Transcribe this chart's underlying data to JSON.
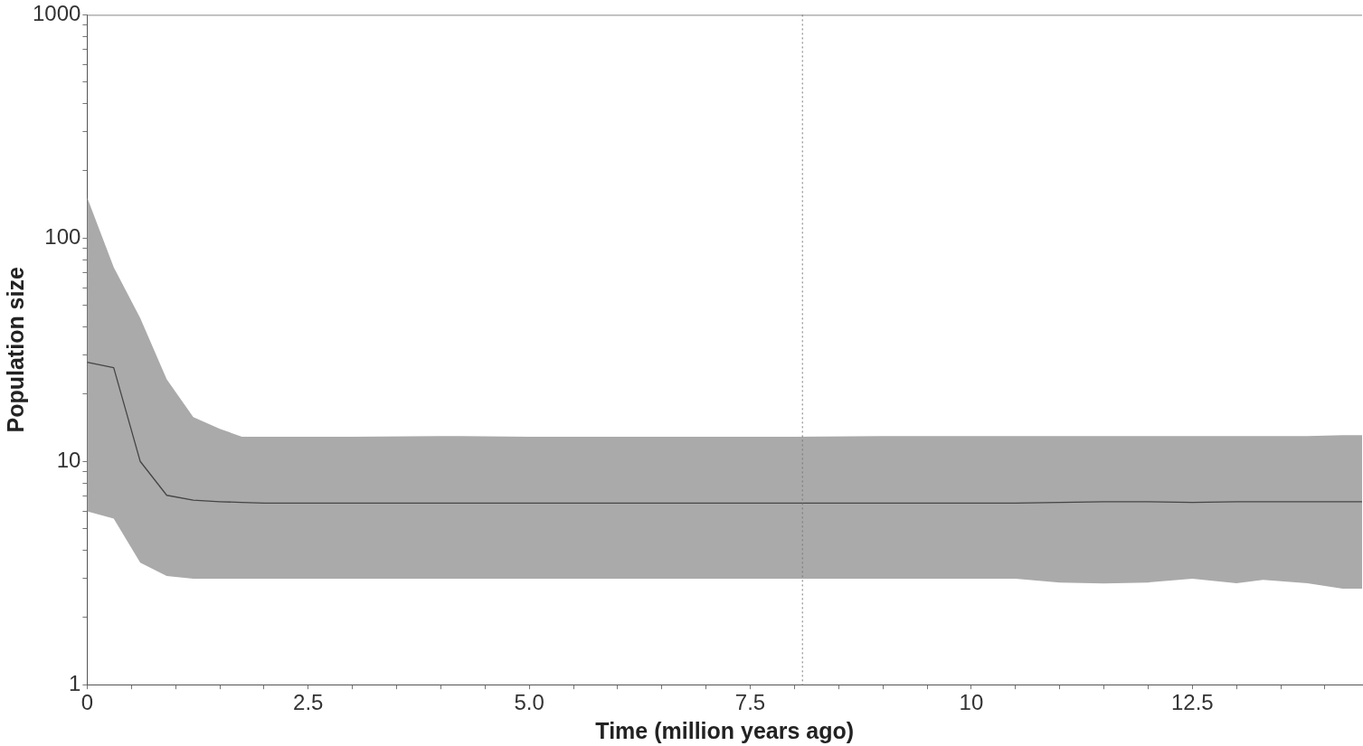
{
  "chart_data": {
    "type": "line",
    "xlabel": "Time (million years ago)",
    "ylabel": "Population size",
    "log": "y",
    "grid": false,
    "legend": false,
    "marker": "none",
    "xlim": [
      0,
      14.42
    ],
    "ylim": [
      1,
      1000
    ],
    "xticks": [
      0,
      {
        "value": 0.5,
        "label": null
      },
      {
        "value": 1,
        "label": null
      },
      {
        "value": 1.5,
        "label": null
      },
      {
        "value": 2,
        "label": null
      },
      2.5,
      {
        "value": 3,
        "label": null
      },
      {
        "value": 3.5,
        "label": null
      },
      {
        "value": 4,
        "label": null
      },
      {
        "value": 4.5,
        "label": null
      },
      {
        "value": 5,
        "label": "5.0"
      },
      {
        "value": 5.5,
        "label": null
      },
      {
        "value": 6,
        "label": null
      },
      {
        "value": 6.5,
        "label": null
      },
      {
        "value": 7,
        "label": null
      },
      7.5,
      {
        "value": 8,
        "label": null
      },
      {
        "value": 8.5,
        "label": null
      },
      {
        "value": 9,
        "label": null
      },
      {
        "value": 9.5,
        "label": null
      },
      10,
      {
        "value": 10.5,
        "label": null
      },
      {
        "value": 11,
        "label": null
      },
      {
        "value": 11.5,
        "label": null
      },
      {
        "value": 12,
        "label": null
      },
      12.5,
      {
        "value": 13,
        "label": null
      },
      {
        "value": 13.5,
        "label": null
      },
      {
        "value": 14,
        "label": null
      }
    ],
    "yticks": [
      1,
      {
        "value": 2,
        "label": null
      },
      {
        "value": 3,
        "label": null
      },
      {
        "value": 4,
        "label": null
      },
      {
        "value": 5,
        "label": null
      },
      {
        "value": 6,
        "label": null
      },
      {
        "value": 7,
        "label": null
      },
      {
        "value": 8,
        "label": null
      },
      {
        "value": 9,
        "label": null
      },
      10,
      {
        "value": 20,
        "label": null
      },
      {
        "value": 30,
        "label": null
      },
      {
        "value": 40,
        "label": null
      },
      {
        "value": 50,
        "label": null
      },
      {
        "value": 60,
        "label": null
      },
      {
        "value": 70,
        "label": null
      },
      {
        "value": 80,
        "label": null
      },
      {
        "value": 90,
        "label": null
      },
      100,
      {
        "value": 200,
        "label": null
      },
      {
        "value": 300,
        "label": null
      },
      {
        "value": 400,
        "label": null
      },
      {
        "value": 500,
        "label": null
      },
      {
        "value": 600,
        "label": null
      },
      {
        "value": 700,
        "label": null
      },
      {
        "value": 800,
        "label": null
      },
      {
        "value": 900,
        "label": null
      },
      1000
    ],
    "x": [
      0,
      0.3,
      0.6,
      0.9,
      1.2,
      1.5,
      1.75,
      2,
      3,
      4,
      5,
      6,
      7,
      8,
      9,
      10,
      10.5,
      11,
      11.5,
      12,
      12.5,
      13,
      13.3,
      13.8,
      14.2,
      14.42
    ],
    "series": [
      {
        "color": "#454545",
        "values": [
          27.8,
          26.3,
          10.0,
          7.05,
          6.7,
          6.6,
          6.55,
          6.5,
          6.5,
          6.5,
          6.5,
          6.5,
          6.5,
          6.5,
          6.5,
          6.5,
          6.5,
          6.55,
          6.6,
          6.6,
          6.55,
          6.6,
          6.6,
          6.6,
          6.6,
          6.6
        ],
        "lower": [
          5.97,
          5.54,
          3.52,
          3.07,
          2.98,
          2.98,
          2.98,
          2.98,
          2.98,
          2.98,
          2.98,
          2.98,
          2.98,
          2.98,
          2.98,
          2.98,
          2.98,
          2.87,
          2.84,
          2.87,
          2.98,
          2.85,
          2.95,
          2.85,
          2.69,
          2.69
        ],
        "upper": [
          152,
          74,
          43.8,
          23.3,
          15.8,
          14.0,
          12.9,
          12.9,
          12.9,
          13.0,
          12.9,
          12.9,
          12.9,
          12.9,
          13.0,
          13.0,
          13.0,
          13.0,
          13.0,
          13.0,
          13.0,
          13.0,
          13.0,
          13.0,
          13.1,
          13.1
        ]
      }
    ],
    "ref_lines": [
      {
        "axis": "x",
        "value": 8.09,
        "line_style": "dotted",
        "color": "#777777"
      }
    ]
  }
}
